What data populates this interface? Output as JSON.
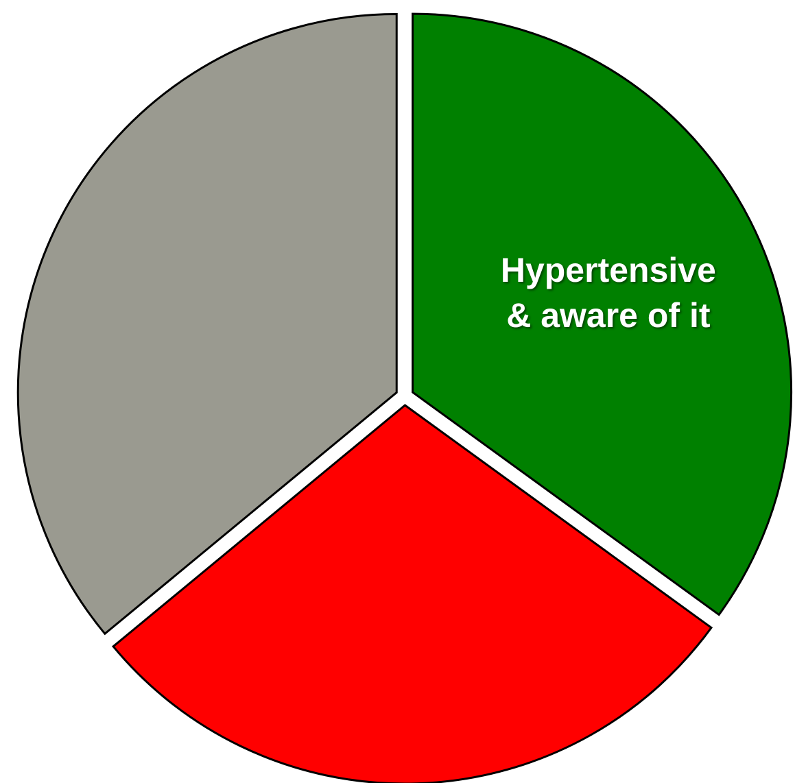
{
  "chart_data": {
    "type": "pie",
    "categories": [
      "Hypertensive\n& aware of it",
      null,
      null
    ],
    "values": [
      35,
      29,
      36
    ],
    "colors": [
      "#008000",
      "#ff0000",
      "#9a9a90"
    ],
    "start_angle": 0,
    "direction": "clockwise",
    "explode": true
  }
}
